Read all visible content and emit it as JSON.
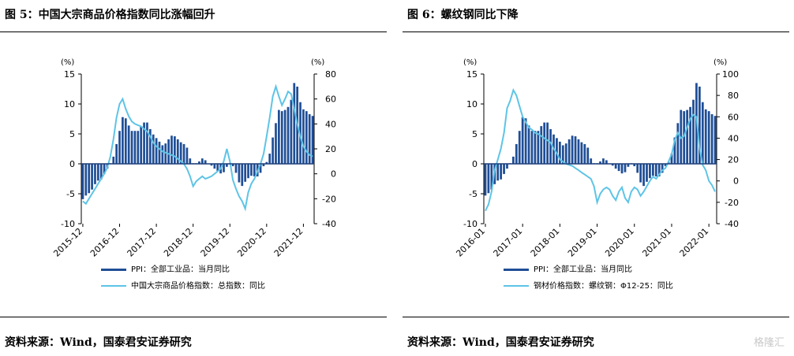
{
  "panels": [
    {
      "title": "图 5：中国大宗商品价格指数同比涨幅回升",
      "source": "资料来源：Wind，国泰君安证券研究",
      "chart_data": {
        "type": "bar+line",
        "left_axis": {
          "unit": "(%)",
          "ylim": [
            -10,
            15
          ],
          "ticks": [
            -10,
            -5,
            0,
            5,
            10,
            15
          ]
        },
        "right_axis": {
          "unit": "(%)",
          "ylim": [
            -40,
            80
          ],
          "ticks": [
            -40,
            -20,
            0,
            20,
            40,
            60,
            80
          ]
        },
        "x_tick_labels": [
          "2015-12",
          "2016-12",
          "2017-12",
          "2018-12",
          "2019-12",
          "2020-12",
          "2021-12"
        ],
        "x_start": "2015-12",
        "series": [
          {
            "name": "PPI：全部工业品：当月同比",
            "type": "bar",
            "axis": "left",
            "color": "#1f4e96",
            "values": [
              -5.9,
              -5.3,
              -4.9,
              -4.3,
              -3.4,
              -2.8,
              -2.6,
              -1.7,
              -0.8,
              0.1,
              1.2,
              3.3,
              5.5,
              7.8,
              7.6,
              6.4,
              5.5,
              5.5,
              5.5,
              6.3,
              6.9,
              6.9,
              5.8,
              4.9,
              4.3,
              3.7,
              3.1,
              3.4,
              4.1,
              4.7,
              4.6,
              4.1,
              3.6,
              3.3,
              2.7,
              0.9,
              0.1,
              0.1,
              0.4,
              0.9,
              0.6,
              0.0,
              -0.3,
              -0.8,
              -1.2,
              -1.6,
              -1.4,
              -0.5,
              0.1,
              -0.4,
              -1.5,
              -3.1,
              -3.7,
              -3.0,
              -2.4,
              -2.0,
              -2.1,
              -2.1,
              -1.5,
              -0.4,
              0.3,
              1.7,
              4.4,
              6.8,
              9.0,
              8.8,
              9.0,
              9.5,
              10.7,
              13.5,
              12.9,
              10.3,
              9.1,
              8.8,
              8.3,
              8.0
            ]
          },
          {
            "name": "中国大宗商品价格指数：总指数：同比",
            "type": "line",
            "axis": "right",
            "color": "#5ec4e6",
            "values": [
              -22,
              -24,
              -20,
              -16,
              -12,
              -8,
              -4,
              0,
              5,
              14,
              28,
              45,
              56,
              60,
              52,
              46,
              42,
              40,
              39,
              38,
              36,
              34,
              30,
              25,
              22,
              20,
              18,
              17,
              16,
              15,
              14,
              12,
              10,
              8,
              4,
              -2,
              -10,
              -6,
              -4,
              -2,
              -4,
              -3,
              -2,
              0,
              2,
              4,
              10,
              20,
              10,
              -5,
              -12,
              -18,
              -22,
              -28,
              -15,
              -8,
              -4,
              2,
              8,
              16,
              30,
              45,
              62,
              70,
              62,
              55,
              60,
              66,
              64,
              52,
              40,
              30,
              22,
              18,
              15,
              14
            ]
          }
        ]
      }
    },
    {
      "title": "图 6：螺纹钢同比下降",
      "source": "资料来源：Wind，国泰君安证券研究",
      "watermark": "格隆汇",
      "chart_data": {
        "type": "bar+line",
        "left_axis": {
          "unit": "(%)",
          "ylim": [
            -10,
            15
          ],
          "ticks": [
            -10,
            -5,
            0,
            5,
            10,
            15
          ]
        },
        "right_axis": {
          "unit": "(%)",
          "ylim": [
            -40,
            100
          ],
          "ticks": [
            -40,
            -20,
            0,
            20,
            40,
            60,
            80,
            100
          ]
        },
        "x_tick_labels": [
          "2016-01",
          "2017-01",
          "2018-01",
          "2019-01",
          "2020-01",
          "2021-01",
          "2022-01"
        ],
        "x_start": "2016-01",
        "series": [
          {
            "name": "PPI：全部工业品：当月同比",
            "type": "bar",
            "axis": "left",
            "color": "#1f4e96",
            "values": [
              -5.3,
              -4.9,
              -4.3,
              -3.4,
              -2.8,
              -2.6,
              -1.7,
              -0.8,
              0.1,
              1.2,
              3.3,
              5.5,
              7.8,
              7.6,
              6.4,
              5.5,
              5.5,
              5.5,
              6.3,
              6.9,
              6.9,
              5.8,
              4.9,
              4.3,
              3.7,
              3.1,
              3.4,
              4.1,
              4.7,
              4.6,
              4.1,
              3.6,
              3.3,
              2.7,
              0.9,
              0.1,
              0.1,
              0.4,
              0.9,
              0.6,
              0.0,
              -0.3,
              -0.8,
              -1.2,
              -1.6,
              -1.4,
              -0.5,
              0.1,
              -0.4,
              -1.5,
              -3.1,
              -3.7,
              -3.0,
              -2.4,
              -2.0,
              -2.1,
              -2.1,
              -1.5,
              -0.4,
              0.3,
              1.7,
              4.4,
              6.8,
              9.0,
              8.8,
              9.0,
              9.5,
              10.7,
              13.5,
              12.9,
              10.3,
              9.1,
              8.8,
              8.3,
              8.0
            ]
          },
          {
            "name": "钢材价格指数：螺纹钢：Φ12-25：同比",
            "type": "line",
            "axis": "right",
            "color": "#5ec4e6",
            "values": [
              -28,
              -22,
              -10,
              10,
              20,
              30,
              45,
              68,
              75,
              85,
              80,
              70,
              60,
              55,
              50,
              48,
              45,
              44,
              42,
              40,
              38,
              36,
              30,
              26,
              20,
              18,
              16,
              15,
              14,
              12,
              10,
              8,
              6,
              4,
              2,
              -5,
              -20,
              -12,
              -8,
              -6,
              -8,
              -14,
              -18,
              -10,
              -6,
              -16,
              -20,
              -10,
              -6,
              -8,
              -14,
              -10,
              -5,
              0,
              4,
              2,
              6,
              10,
              12,
              18,
              25,
              38,
              45,
              40,
              42,
              50,
              58,
              62,
              60,
              30,
              15,
              10,
              0,
              -4,
              -10
            ]
          }
        ]
      }
    }
  ]
}
